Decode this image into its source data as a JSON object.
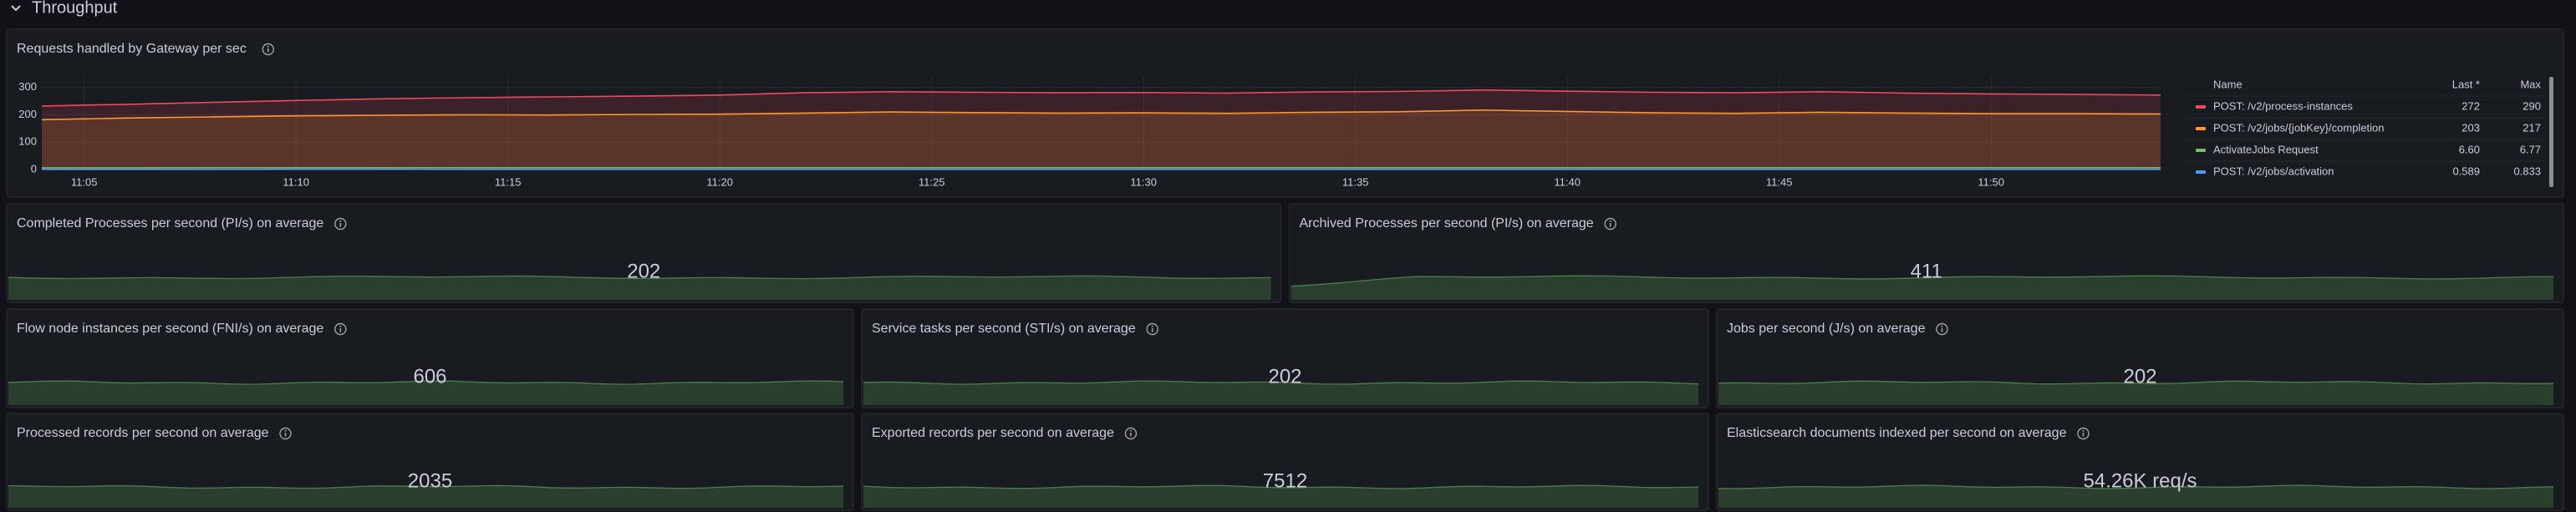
{
  "row_title": "Throughput",
  "chart_data": {
    "type": "line",
    "title": "Requests handled by Gateway per sec",
    "x": [
      "11:04",
      "11:06",
      "11:08",
      "11:10",
      "11:12",
      "11:14",
      "11:16",
      "11:18",
      "11:20",
      "11:22",
      "11:24",
      "11:26",
      "11:28",
      "11:30",
      "11:32",
      "11:34",
      "11:36",
      "11:38",
      "11:40",
      "11:42",
      "11:44",
      "11:46",
      "11:48",
      "11:50",
      "11:52",
      "11:54"
    ],
    "xlim": [
      "11:04",
      "11:54"
    ],
    "xticks": [
      "11:05",
      "11:10",
      "11:15",
      "11:20",
      "11:25",
      "11:30",
      "11:35",
      "11:40",
      "11:45",
      "11:50"
    ],
    "ylim": [
      0,
      320
    ],
    "yticks": [
      0,
      100,
      200,
      300
    ],
    "grid": true,
    "series": [
      {
        "name": "POST: /v2/process-instances",
        "color": "#f2495c",
        "fill": true,
        "values": [
          232,
          238,
          245,
          252,
          258,
          262,
          265,
          268,
          272,
          280,
          284,
          282,
          280,
          281,
          279,
          283,
          285,
          290,
          286,
          282,
          280,
          284,
          279,
          276,
          274,
          272
        ]
      },
      {
        "name": "POST: /v2/jobs/{jobKey}/completion",
        "color": "#ff9830",
        "fill": true,
        "values": [
          182,
          188,
          192,
          196,
          198,
          200,
          199,
          201,
          202,
          206,
          210,
          208,
          206,
          207,
          205,
          209,
          211,
          217,
          212,
          207,
          205,
          209,
          206,
          204,
          204,
          203
        ]
      },
      {
        "name": "ActivateJobs Request",
        "color": "#73bf69",
        "fill": false,
        "values": [
          6.4,
          6.5,
          6.6,
          6.6,
          6.7,
          6.6,
          6.6,
          6.7,
          6.6,
          6.7,
          6.77,
          6.7,
          6.6,
          6.7,
          6.6,
          6.7,
          6.7,
          6.7,
          6.7,
          6.6,
          6.6,
          6.7,
          6.6,
          6.6,
          6.6,
          6.6
        ]
      },
      {
        "name": "POST: /v2/jobs/activation",
        "color": "#5794f2",
        "fill": false,
        "values": [
          0.7,
          0.6,
          0.65,
          0.8,
          0.833,
          0.7,
          0.6,
          0.6,
          0.62,
          0.65,
          0.6,
          0.61,
          0.7,
          0.66,
          0.6,
          0.62,
          0.64,
          0.6,
          0.63,
          0.61,
          0.6,
          0.62,
          0.6,
          0.6,
          0.59,
          0.589
        ]
      }
    ],
    "legend": {
      "columns": [
        "Name",
        "Last *",
        "Max"
      ],
      "rows": [
        [
          272,
          290
        ],
        [
          203,
          217
        ],
        [
          {
            "value": 6.6,
            "label": "6.60"
          },
          6.77
        ],
        [
          0.589,
          0.833
        ]
      ]
    }
  },
  "stat_panels": [
    {
      "title": "Completed Processes per second (PI/s) on average",
      "value": 202
    },
    {
      "title": "Archived Processes per second (PI/s) on average",
      "value": 411
    },
    {
      "title": "Flow node instances per second (FNI/s) on average",
      "value": 606
    },
    {
      "title": "Service tasks per second (STI/s) on average",
      "value": 202
    },
    {
      "title": "Jobs per second (J/s) on average",
      "value": 202
    },
    {
      "title": "Processed records per second on average",
      "value": 2035
    },
    {
      "title": "Exported records per second on average",
      "value": 7512
    },
    {
      "title": "Elasticsearch documents indexed per second on average",
      "value": {
        "value": 54260,
        "label": "54.26K req/s"
      }
    }
  ]
}
